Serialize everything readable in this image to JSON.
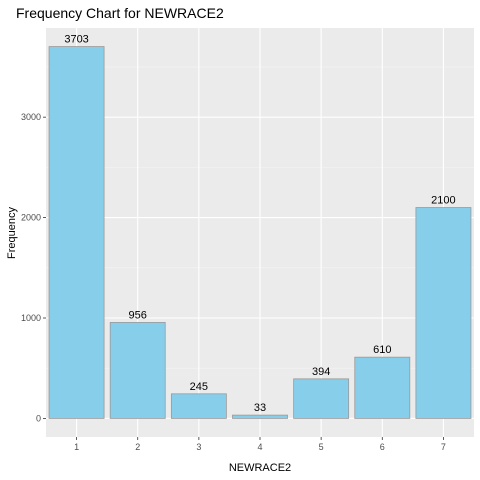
{
  "chart_data": {
    "type": "bar",
    "title": "Frequency Chart for NEWRACE2",
    "xlabel": "NEWRACE2",
    "ylabel": "Frequency",
    "categories": [
      "1",
      "2",
      "3",
      "4",
      "5",
      "6",
      "7"
    ],
    "values": [
      3703,
      956,
      245,
      33,
      394,
      610,
      2100
    ],
    "data_labels": [
      "3703",
      "956",
      "245",
      "33",
      "394",
      "610",
      "2100"
    ],
    "yticks": [
      0,
      1000,
      2000,
      3000
    ],
    "ytick_labels": [
      "0",
      "1000",
      "2000",
      "3000"
    ],
    "ylim": [
      -185,
      3888
    ],
    "grid": true,
    "colors": {
      "bar_fill": "#87ceeb",
      "bar_stroke": "#999999",
      "panel_bg": "#ebebeb",
      "grid_major": "#ffffff",
      "grid_minor": "#f5f5f5",
      "tick_text": "#4d4d4d"
    }
  }
}
